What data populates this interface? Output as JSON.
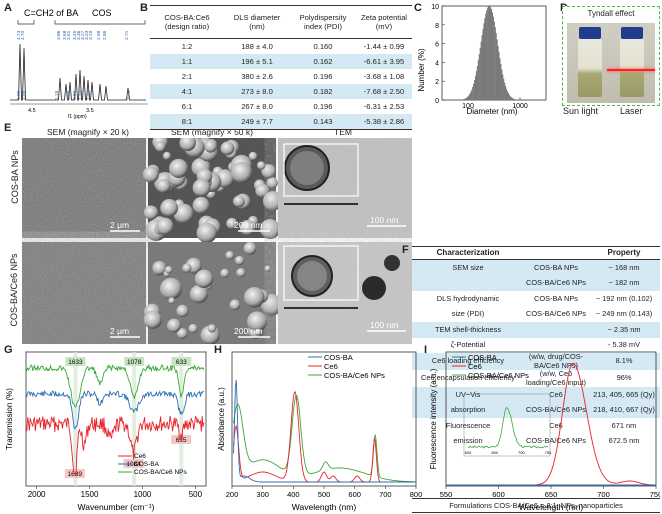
{
  "panels": {
    "A": "A",
    "B": "B",
    "C": "C",
    "D": "D",
    "E": "E",
    "F": "F",
    "G": "G",
    "H": "H",
    "I": "I"
  },
  "panelA": {
    "label_ba": "C=CH2 of BA",
    "label_cos": "COS",
    "xlabel": "f1 (ppm)",
    "ticks": [
      "4.5",
      "3.5",
      "3.0"
    ],
    "peaks_top": [
      "4.73",
      "4.70",
      "3.86",
      "3.68",
      "3.61",
      "3.45",
      "3.36",
      "3.27",
      "3.23",
      "3.19",
      "2.98",
      "2.86",
      "2.71"
    ],
    "integrals": [
      "1.00",
      "1.00",
      "1.19",
      "1.06",
      "0.59",
      "1.12",
      "1.10",
      "2.71"
    ]
  },
  "tableB": {
    "headers": [
      "COS-BA:Ce6 (design ratio)",
      "DLS diameter (nm)",
      "Polydispersity index (PDI)",
      "Zeta potential (mV)"
    ],
    "rows": [
      [
        "1:2",
        "188 ± 4.0",
        "0.160",
        "-1.44 ± 0.99"
      ],
      [
        "1:1",
        "196 ± 5.1",
        "0.162",
        "-6.61 ± 3.95"
      ],
      [
        "2:1",
        "380 ± 2.6",
        "0.196",
        "-3.68 ± 1.08"
      ],
      [
        "4:1",
        "273 ± 8.0",
        "0.182",
        "-7.68 ± 2.50"
      ],
      [
        "6:1",
        "267 ± 8.0",
        "0.196",
        "-6.31 ± 2.53"
      ],
      [
        "8:1",
        "249 ± 7.7",
        "0.143",
        "-5.38 ± 2.86"
      ]
    ]
  },
  "panelC": {
    "chart_data": {
      "type": "bar",
      "ylabel": "Number (%)",
      "xlabel": "Diameter (nm)",
      "ylim": [
        0,
        10
      ],
      "yticks": [
        "0",
        "2",
        "4",
        "6",
        "8",
        "10"
      ],
      "xticks": [
        "100",
        "1000"
      ],
      "peak_diameter": 250
    }
  },
  "panelD": {
    "title": "Tyndall effect",
    "left_label": "Sun light",
    "right_label": "Laser"
  },
  "panelE": {
    "col1": "SEM (magnify × 20 k)",
    "col2": "SEM (magnify × 50 k)",
    "col3": "TEM",
    "row1": "COS-BA NPs",
    "row2": "COS-BA/Ce6 NPs",
    "scale1": "2 μm",
    "scale2": "200 nm",
    "scale3": "100 nm"
  },
  "tableF": {
    "headers": [
      "Characterization",
      "Property"
    ],
    "rows": [
      {
        "a": "SEM size",
        "b": "COS-BA NPs",
        "c": "~ 168 nm",
        "shade": true
      },
      {
        "a": "",
        "b": "COS-BA/Ce6 NPs",
        "c": "~ 182 nm",
        "shade": true
      },
      {
        "a": "DLS hydrodynamic",
        "b": "COS-BA NPs",
        "c": "~ 192 nm (0.102)",
        "shade": false
      },
      {
        "a": "size (PDI)",
        "b": "COS-BA/Ce6 NPs",
        "c": "~ 249 nm (0.143)",
        "shade": false
      },
      {
        "a": "TEM shell-thickness",
        "b": "",
        "c": "~ 2.35 nm",
        "shade": true
      },
      {
        "a": "ζ-Potential",
        "b": "",
        "c": "- 5.38 mV",
        "shade": false
      },
      {
        "a": "Ce6 loading efficiency",
        "b": "(w/w, drug/COS-BA/Ce6 NPs)",
        "c": "8.1%",
        "shade": true
      },
      {
        "a": "Ce6 encapsulation efficiency",
        "b": "(w/w, Ce6 loading/Ce6 input)",
        "c": "96%",
        "shade": false
      },
      {
        "a": "UV−Vis",
        "b": "Ce6",
        "c": "213, 405, 665 (Qy)",
        "shade": true
      },
      {
        "a": "absorption",
        "b": "COS-BA/Ce6 NPs",
        "c": "218, 410, 667 (Qy)",
        "shade": true
      },
      {
        "a": "Fluorescence",
        "b": "Ce6",
        "c": "671 nm",
        "shade": false
      },
      {
        "a": "emission",
        "b": "COS-BA/Ce6 NPs",
        "c": "672.5 nm",
        "shade": false
      }
    ],
    "footer": "Formulations COS-BA/Ce6 = 8:1; NPs, nanoparticles"
  },
  "panelG": {
    "chart_data": {
      "type": "line",
      "ylabel": "Transmission (%)",
      "xlabel": "Wavenumber (cm⁻¹)",
      "xticks": [
        "2000",
        "1500",
        "1000",
        "500"
      ],
      "series": [
        {
          "name": "Ce6",
          "color": "#e8242b"
        },
        {
          "name": "COS-BA",
          "color": "#2c6fb7"
        },
        {
          "name": "COS-BA/Ce6 NPs",
          "color": "#3aa935"
        }
      ],
      "marks_top": [
        "1633",
        "1078",
        "633"
      ],
      "marks_bottom": [
        "1639",
        "1084",
        "635"
      ]
    }
  },
  "panelH": {
    "chart_data": {
      "type": "line",
      "ylabel": "Absorbance (a.u.)",
      "xlabel": "Wavelength (nm)",
      "xlim": [
        200,
        800
      ],
      "xticks": [
        "200",
        "300",
        "400",
        "500",
        "600",
        "700",
        "800"
      ],
      "series": [
        {
          "name": "COS-BA",
          "color": "#2c6fb7"
        },
        {
          "name": "Ce6",
          "color": "#e8242b"
        },
        {
          "name": "COS-BA/Ce6 NPs",
          "color": "#3aa935"
        }
      ]
    }
  },
  "panelI": {
    "chart_data": {
      "type": "line",
      "ylabel": "Fluorescence intensity (a.u.)",
      "xlabel": "Wavelength (nm)",
      "xlim": [
        550,
        750
      ],
      "xticks": [
        "550",
        "600",
        "650",
        "700",
        "750"
      ],
      "inset_xticks": [
        "600",
        "650",
        "700",
        "750"
      ],
      "series": [
        {
          "name": "COS-BA",
          "color": "#2c6fb7"
        },
        {
          "name": "Ce6",
          "color": "#e8242b"
        },
        {
          "name": "COS-BA/Ce6 NPs",
          "color": "#3aa935"
        }
      ]
    }
  }
}
